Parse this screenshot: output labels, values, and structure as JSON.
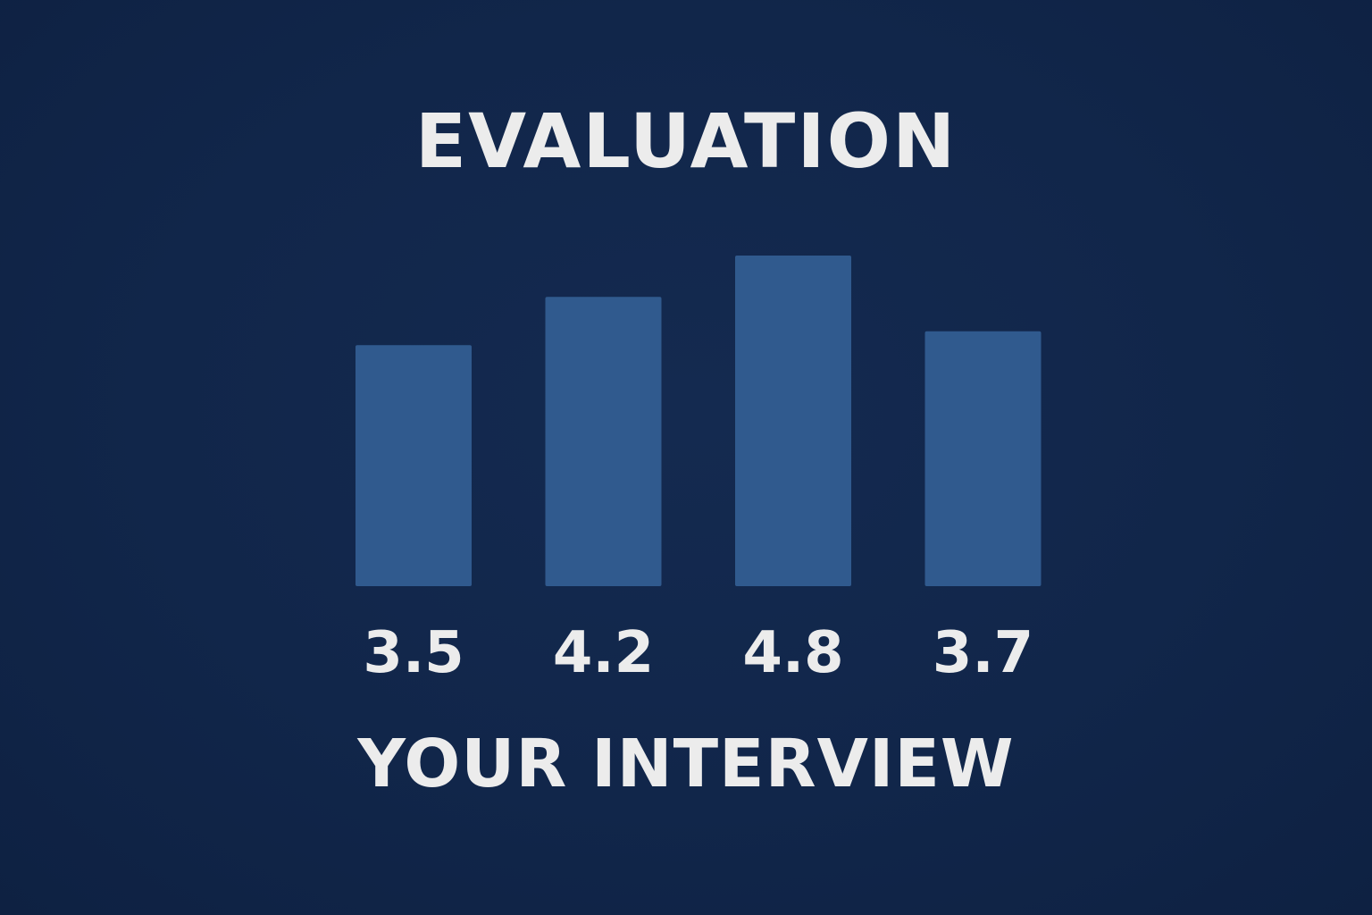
{
  "chart_data": {
    "type": "bar",
    "title": "EVALUATION",
    "subtitle": "YOUR INTERVIEW",
    "values": [
      3.5,
      4.2,
      4.8,
      3.7
    ],
    "value_labels": [
      "3.5",
      "4.2",
      "4.8",
      "3.7"
    ],
    "grid": false,
    "legend": "none",
    "ylim": [
      0,
      4.8
    ],
    "colors": {
      "background": "#11264a",
      "bar": "#305a8e",
      "text": "#ececec"
    }
  }
}
